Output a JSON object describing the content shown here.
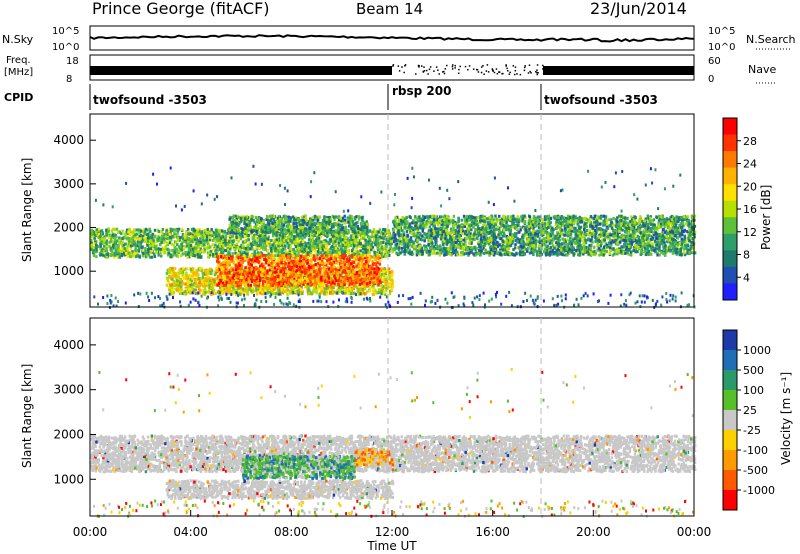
{
  "header": {
    "station": "Prince George (fitACF)",
    "beam": "Beam 14",
    "date": "23/Jun/2014"
  },
  "summary": {
    "nsky_label": "N.Sky",
    "nsky_ticks": [
      "10^5",
      "10^0"
    ],
    "nsearch_label": "N.Search",
    "nsearch_ticks": [
      "10^5",
      "10^0"
    ],
    "freq_label": "Freq.",
    "freq_unit": "[MHz]",
    "freq_ticks": [
      "18",
      "8"
    ],
    "nave_label": "Nave",
    "nave_ticks": [
      "60",
      "0"
    ],
    "cpid_label": "CPID",
    "programs": [
      {
        "name": "twofsound -3503",
        "start_hour": 0
      },
      {
        "name": "rbsp 200",
        "start_hour": 12
      },
      {
        "name": "twofsound -3503",
        "start_hour": 18
      }
    ]
  },
  "xaxis": {
    "title": "Time UT",
    "ticks": [
      "00:00",
      "04:00",
      "08:00",
      "12:00",
      "16:00",
      "20:00",
      "00:00"
    ],
    "range_hours": [
      0,
      24
    ]
  },
  "power_panel": {
    "ylabel": "Slant Range [km]",
    "yticks": [
      "1000",
      "2000",
      "3000",
      "4000"
    ],
    "colorbar_label": "Power [dB]",
    "colorbar_ticks": [
      "28",
      "24",
      "20",
      "16",
      "12",
      "8",
      "4"
    ],
    "colors": [
      "#ff0000",
      "#ff3300",
      "#ff7a00",
      "#ffb300",
      "#ffe000",
      "#b6e000",
      "#5fc03a",
      "#2e9e6a",
      "#1f7a6e",
      "#1f4fb0",
      "#1f1fff"
    ]
  },
  "velocity_panel": {
    "ylabel": "Slant Range [km]",
    "yticks": [
      "1000",
      "2000",
      "3000",
      "4000"
    ],
    "colorbar_label": "Velocity [m s⁻¹]",
    "colorbar_ticks": [
      "1000",
      "500",
      "100",
      "25",
      "-25",
      "-100",
      "-500",
      "-1000"
    ],
    "colors": [
      "#1c3aa8",
      "#1e6eb8",
      "#2a9a6a",
      "#55c02a",
      "#c8c8c8",
      "#ffd000",
      "#ff9a00",
      "#ff5a00",
      "#ff0000"
    ]
  },
  "chart_data": [
    {
      "type": "heatmap",
      "title": "Power",
      "xlabel": "Time UT",
      "ylabel": "Slant Range [km]",
      "x_range_hours": [
        0,
        24
      ],
      "ylim_km": [
        180,
        4600
      ],
      "colorbar": {
        "label": "Power [dB]",
        "range": [
          0,
          32
        ],
        "ticks": [
          4,
          8,
          12,
          16,
          20,
          24,
          28
        ]
      },
      "echo_regions": [
        {
          "t0": 0.0,
          "t1": 12.0,
          "r0": 1350,
          "r1": 2000,
          "power_db": 12
        },
        {
          "t0": 12.0,
          "t1": 24.0,
          "r0": 1400,
          "r1": 2300,
          "power_db": 10
        },
        {
          "t0": 3.0,
          "t1": 12.0,
          "r0": 500,
          "r1": 1100,
          "power_db": 18
        },
        {
          "t0": 5.0,
          "t1": 11.5,
          "r0": 700,
          "r1": 1400,
          "power_db": 26
        },
        {
          "t0": 5.5,
          "t1": 11.0,
          "r0": 1900,
          "r1": 2300,
          "power_db": 10
        }
      ]
    },
    {
      "type": "heatmap",
      "title": "Velocity",
      "xlabel": "Time UT",
      "ylabel": "Slant Range [km]",
      "x_range_hours": [
        0,
        24
      ],
      "ylim_km": [
        180,
        4600
      ],
      "colorbar": {
        "label": "Velocity [m s⁻¹]",
        "ticks": [
          1000,
          500,
          100,
          25,
          -25,
          -100,
          -500,
          -1000
        ]
      },
      "echo_regions": [
        {
          "t0": 0.0,
          "t1": 24.0,
          "r0": 1200,
          "r1": 2000,
          "velocity": 0
        },
        {
          "t0": 3.0,
          "t1": 12.0,
          "r0": 600,
          "r1": 1000,
          "velocity": 0
        },
        {
          "t0": 6.0,
          "t1": 10.5,
          "r0": 1050,
          "r1": 1550,
          "velocity": 300
        },
        {
          "t0": 10.5,
          "t1": 12.0,
          "r0": 1350,
          "r1": 1700,
          "velocity": -150
        }
      ]
    }
  ]
}
